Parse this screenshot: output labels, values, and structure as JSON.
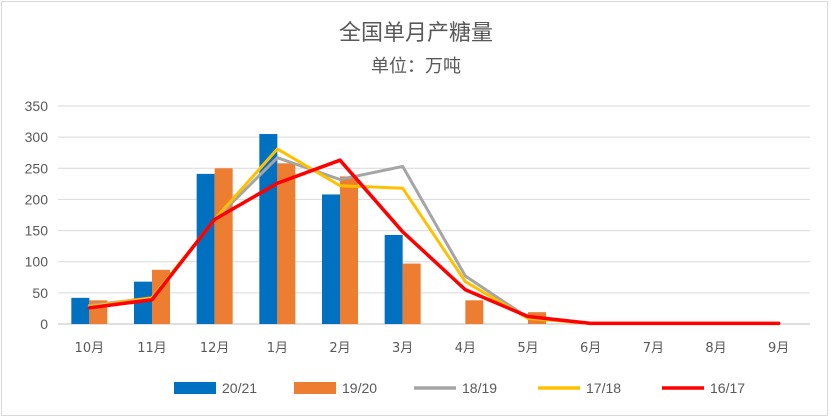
{
  "chart_data": {
    "type": "bar",
    "title": "全国单月产糖量",
    "subtitle": "单位：万吨",
    "categories": [
      "10月",
      "11月",
      "12月",
      "1月",
      "2月",
      "3月",
      "4月",
      "5月",
      "6月",
      "7月",
      "8月",
      "9月"
    ],
    "ylim": [
      0,
      350
    ],
    "yticks": [
      0,
      50,
      100,
      150,
      200,
      250,
      300,
      350
    ],
    "grid": true,
    "legend_position": "bottom",
    "series": [
      {
        "name": "20/21",
        "kind": "bar",
        "color": "#0070c0",
        "values": [
          42,
          68,
          241,
          305,
          208,
          143,
          null,
          null,
          null,
          null,
          null,
          null
        ]
      },
      {
        "name": "19/20",
        "kind": "bar",
        "color": "#ed7d31",
        "values": [
          38,
          87,
          250,
          258,
          237,
          97,
          38,
          19,
          null,
          null,
          null,
          null
        ]
      },
      {
        "name": "18/19",
        "kind": "line",
        "color": "#a5a5a5",
        "values": [
          30,
          42,
          167,
          267,
          232,
          253,
          77,
          10,
          1,
          1,
          1,
          1
        ]
      },
      {
        "name": "17/18",
        "kind": "line",
        "color": "#ffc000",
        "values": [
          28,
          42,
          168,
          281,
          222,
          218,
          68,
          9,
          1,
          1,
          1,
          1
        ]
      },
      {
        "name": "16/17",
        "kind": "line",
        "color": "#ff0000",
        "values": [
          26,
          39,
          168,
          226,
          263,
          148,
          55,
          12,
          1,
          1,
          1,
          1
        ]
      }
    ]
  }
}
